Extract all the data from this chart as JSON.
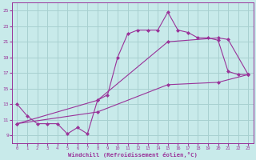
{
  "xlabel": "Windchill (Refroidissement éolien,°C)",
  "bg_color": "#c8eaea",
  "grid_color": "#a8d0d0",
  "line_color": "#993399",
  "xlim": [
    -0.5,
    23.5
  ],
  "ylim": [
    8.0,
    26.0
  ],
  "xticks": [
    0,
    1,
    2,
    3,
    4,
    5,
    6,
    7,
    8,
    9,
    10,
    11,
    12,
    13,
    14,
    15,
    16,
    17,
    18,
    19,
    20,
    21,
    22,
    23
  ],
  "yticks": [
    9,
    11,
    13,
    15,
    17,
    19,
    21,
    23,
    25
  ],
  "line1_x": [
    0,
    1,
    2,
    3,
    4,
    5,
    6,
    7,
    8,
    9,
    10,
    11,
    12,
    13,
    14,
    15,
    16,
    17,
    18,
    19,
    20,
    21,
    22,
    23
  ],
  "line1_y": [
    13.0,
    11.5,
    10.5,
    10.5,
    10.5,
    9.2,
    10.0,
    9.2,
    13.5,
    14.2,
    19.0,
    22.0,
    22.5,
    22.5,
    22.5,
    24.8,
    22.5,
    22.2,
    21.5,
    21.5,
    21.2,
    17.2,
    16.8,
    16.8
  ],
  "line2_x": [
    0,
    8,
    15,
    20,
    21,
    23
  ],
  "line2_y": [
    10.5,
    13.5,
    21.0,
    21.5,
    21.3,
    16.8
  ],
  "line3_x": [
    0,
    8,
    15,
    20,
    23
  ],
  "line3_y": [
    10.5,
    12.0,
    15.5,
    15.8,
    16.8
  ],
  "marker": "D",
  "markersize": 2,
  "linewidth": 0.8
}
